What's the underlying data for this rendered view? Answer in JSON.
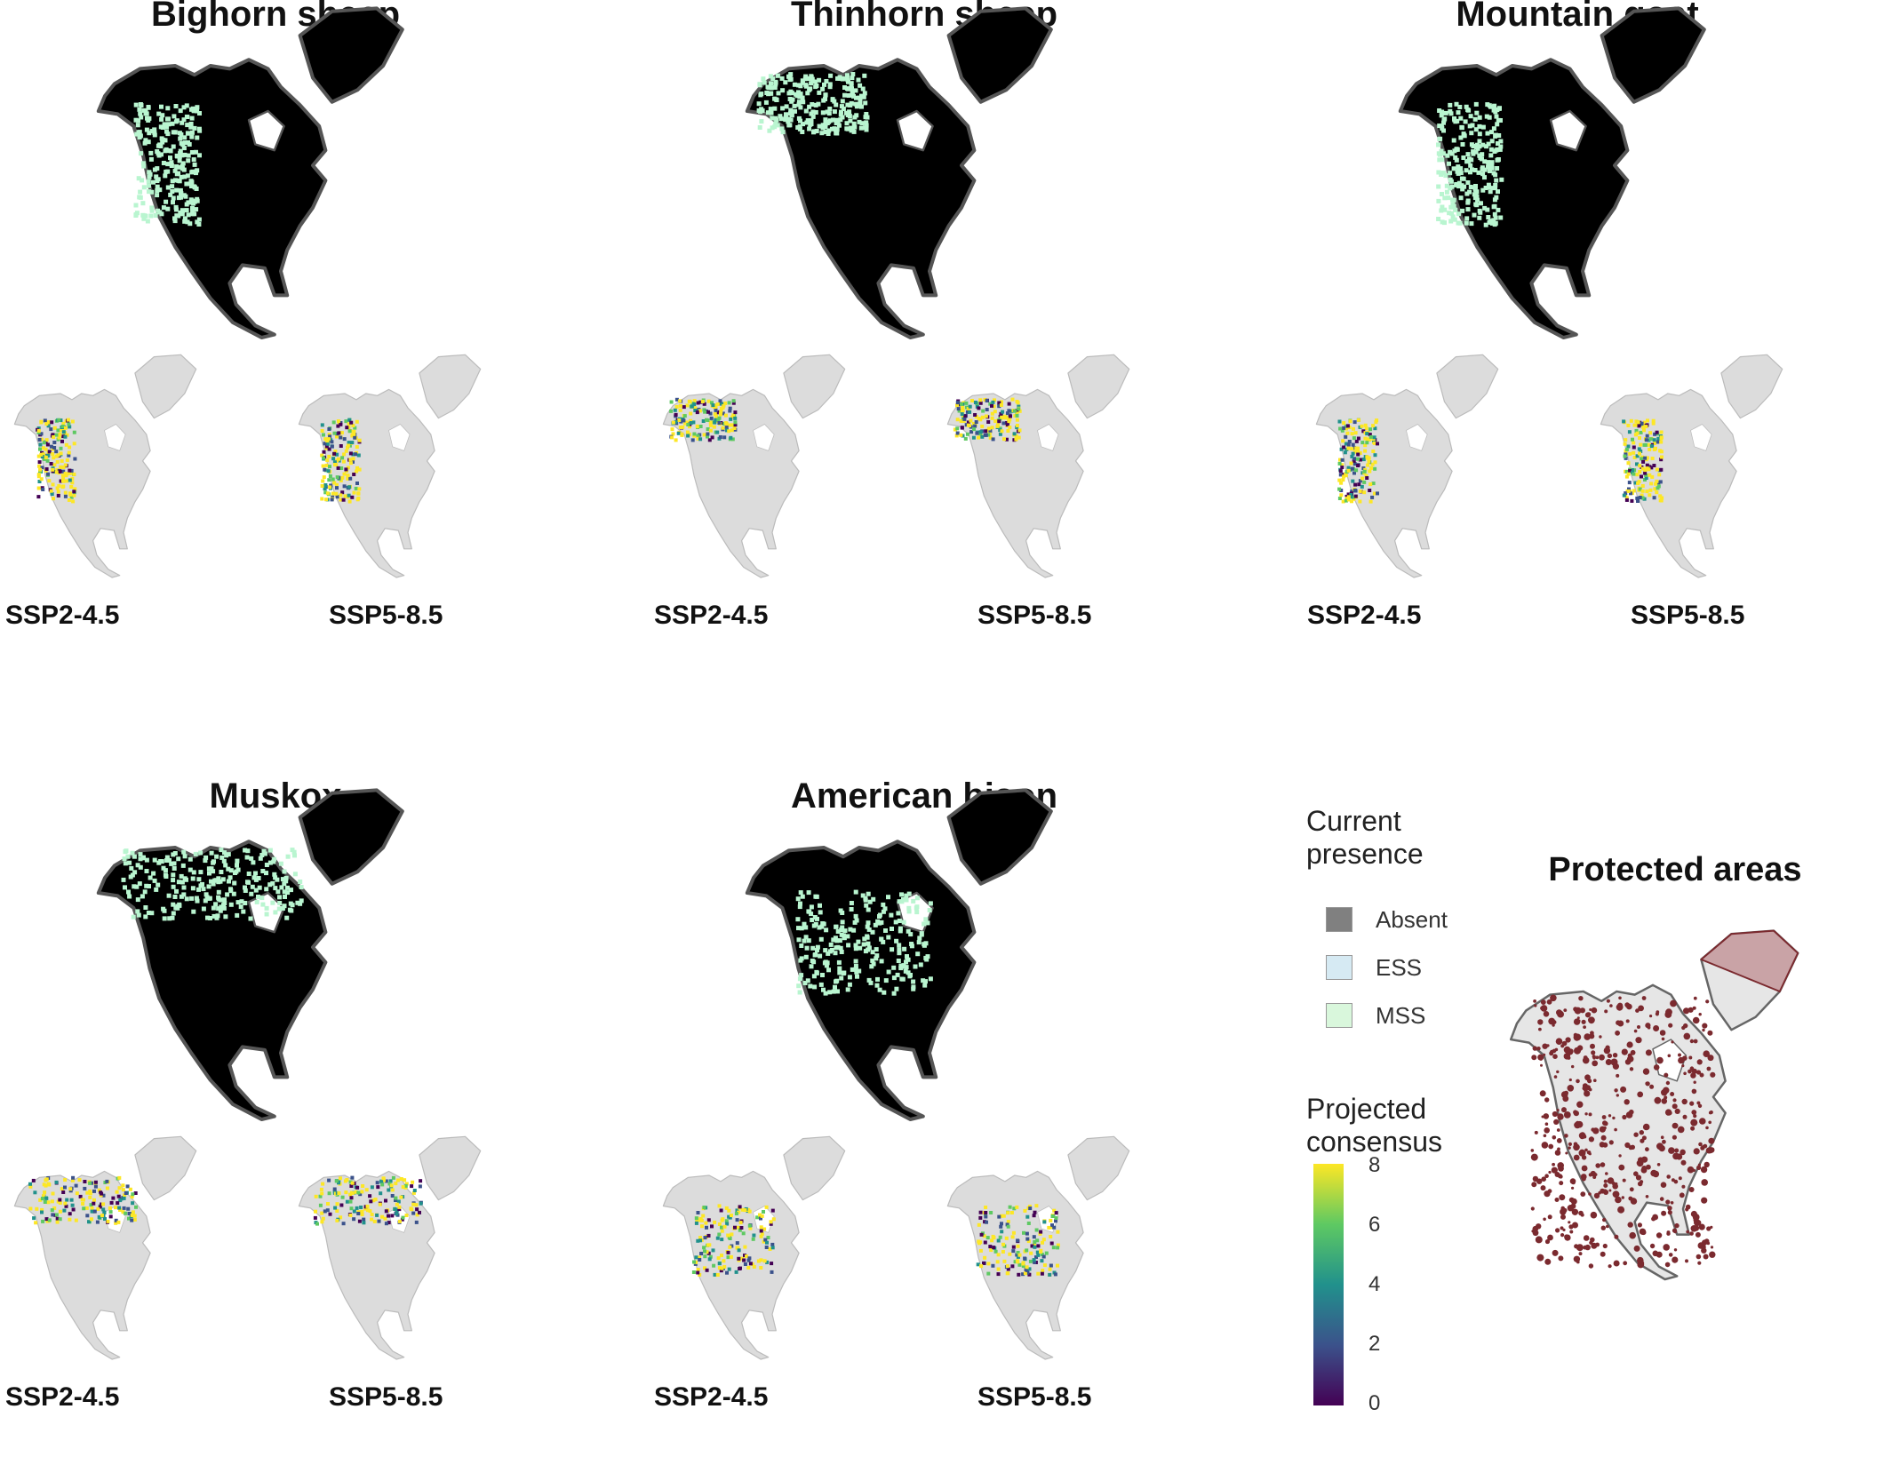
{
  "panels": [
    {
      "id": "bighorn",
      "title": "Bighorn sheep",
      "left_label": "SSP2-4.5",
      "right_label": "SSP5-8.5",
      "presence": "MSS",
      "range": "west-mountains"
    },
    {
      "id": "thinhorn",
      "title": "Thinhorn sheep",
      "left_label": "SSP2-4.5",
      "right_label": "SSP5-8.5",
      "presence": "MSS",
      "range": "northwest"
    },
    {
      "id": "goat",
      "title": "Mountain goat",
      "left_label": "SSP2-4.5",
      "right_label": "SSP5-8.5",
      "presence": "MSS",
      "range": "west-mountains"
    },
    {
      "id": "muskox",
      "title": "Muskox",
      "left_label": "SSP2-4.5",
      "right_label": "SSP5-8.5",
      "presence": "MSS",
      "range": "arctic"
    },
    {
      "id": "bison",
      "title": "American bison",
      "left_label": "SSP2-4.5",
      "right_label": "SSP5-8.5",
      "presence": "MSS",
      "range": "plains"
    }
  ],
  "legend": {
    "presence_title": "Current\npresence",
    "items": [
      {
        "label": "Absent",
        "color": "#808080"
      },
      {
        "label": "ESS",
        "color": "#d6eaf3"
      },
      {
        "label": "MSS",
        "color": "#d9f7dc"
      }
    ],
    "consensus_title": "Projected\nconsensus",
    "ticks": [
      "8",
      "6",
      "4",
      "2",
      "0"
    ],
    "scale_min": 0,
    "scale_max": 8
  },
  "protected": {
    "title": "Protected areas",
    "fill": "#7b2a2f"
  },
  "colors": {
    "land": "#000000",
    "border": "#555555",
    "suitable": "#b9f5d0",
    "future_bg": "#dcdcdc",
    "high": "#fde725",
    "mid": "#21918c",
    "low": "#440154"
  }
}
